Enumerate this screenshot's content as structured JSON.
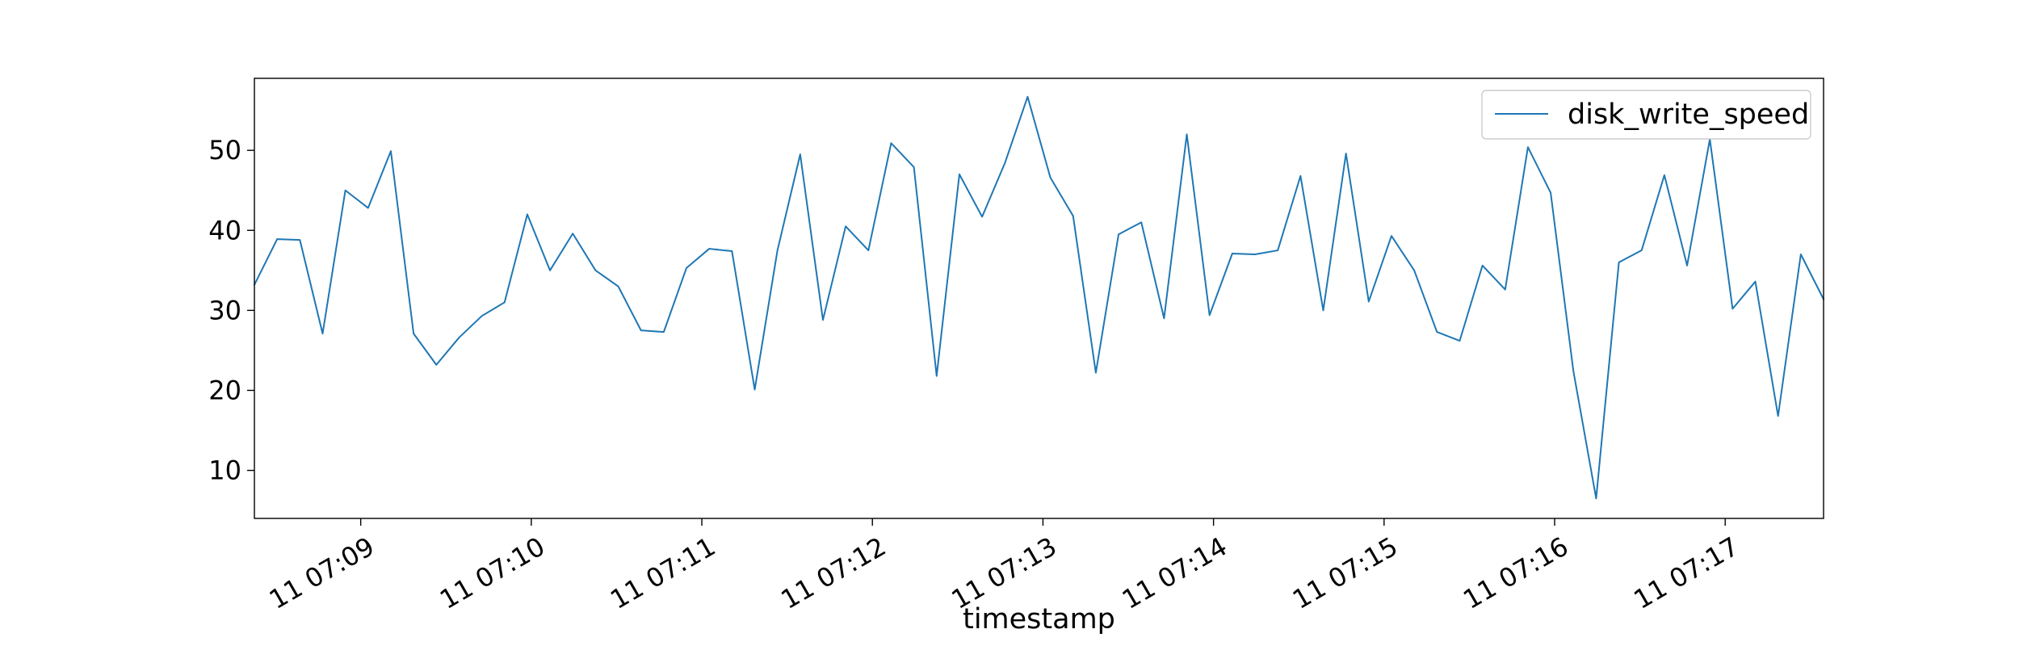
{
  "chart_data": {
    "type": "line",
    "title": "",
    "xlabel": "timestamp",
    "ylabel": "",
    "ylim": [
      4.0,
      59.0
    ],
    "yticks": [
      10,
      20,
      30,
      40,
      50
    ],
    "xticks": [
      {
        "minute": 1,
        "label": "11 07:09"
      },
      {
        "minute": 2,
        "label": "11 07:10"
      },
      {
        "minute": 3,
        "label": "11 07:11"
      },
      {
        "minute": 4,
        "label": "11 07:12"
      },
      {
        "minute": 5,
        "label": "11 07:13"
      },
      {
        "minute": 6,
        "label": "11 07:14"
      },
      {
        "minute": 7,
        "label": "11 07:15"
      },
      {
        "minute": 8,
        "label": "11 07:16"
      },
      {
        "minute": 9,
        "label": "11 07:17"
      }
    ],
    "x_interval_seconds": 8,
    "x_start_offset": 0.3767,
    "grid": false,
    "legend_position": "top-right",
    "series": [
      {
        "name": "disk_write_speed",
        "color": "#1f77b4",
        "values": [
          33.2,
          38.9,
          38.8,
          27.1,
          45.0,
          42.8,
          49.9,
          27.1,
          23.2,
          26.6,
          29.3,
          31.0,
          42.0,
          35.0,
          39.6,
          35.0,
          33.0,
          27.5,
          27.3,
          35.3,
          37.7,
          37.4,
          20.1,
          37.5,
          49.5,
          28.8,
          40.5,
          37.5,
          50.9,
          47.9,
          21.8,
          47.0,
          41.7,
          48.4,
          56.7,
          46.6,
          41.8,
          22.2,
          39.5,
          41.0,
          29.0,
          52.0,
          29.4,
          37.1,
          37.0,
          37.5,
          46.8,
          30.0,
          49.6,
          31.1,
          39.3,
          35.0,
          27.3,
          26.2,
          35.6,
          32.6,
          50.4,
          44.7,
          22.4,
          6.5,
          36.0,
          37.5,
          46.9,
          35.6,
          51.4,
          30.2,
          33.6,
          16.8,
          37.0,
          31.4
        ]
      }
    ]
  }
}
